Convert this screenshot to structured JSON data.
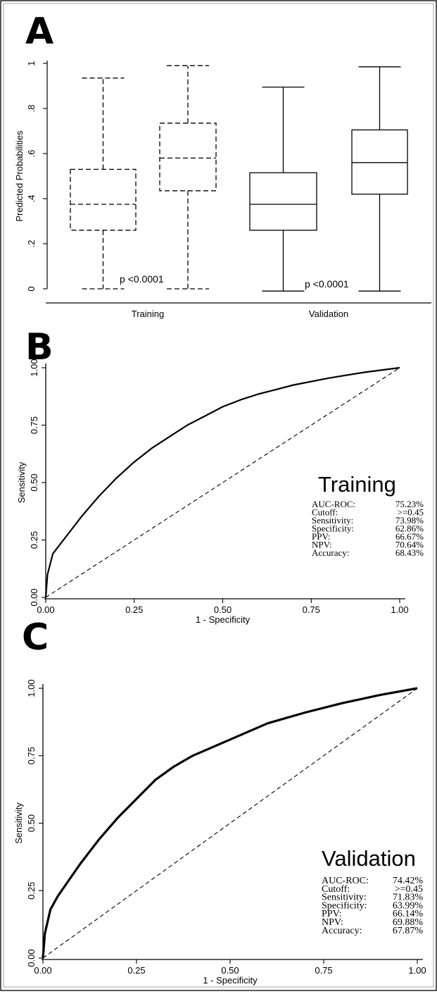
{
  "chart_data": [
    {
      "panel": "A",
      "type": "box",
      "ylabel": "Predicted Probabilities",
      "ylim": [
        0,
        1
      ],
      "yticks": [
        "0",
        ".2",
        ".4",
        ".6",
        ".8",
        "1"
      ],
      "groups": [
        {
          "label": "Training",
          "pvalue": "p <0.0001",
          "line_style": "dashed",
          "boxes": [
            {
              "min": 0.0,
              "q1": 0.26,
              "median": 0.375,
              "q3": 0.53,
              "max": 0.935
            },
            {
              "min": 0.0,
              "q1": 0.435,
              "median": 0.58,
              "q3": 0.735,
              "max": 0.99
            }
          ]
        },
        {
          "label": "Validation",
          "pvalue": "p <0.0001",
          "line_style": "solid",
          "boxes": [
            {
              "min": -0.01,
              "q1": 0.26,
              "median": 0.375,
              "q3": 0.515,
              "max": 0.895
            },
            {
              "min": -0.01,
              "q1": 0.42,
              "median": 0.56,
              "q3": 0.705,
              "max": 0.985
            }
          ]
        }
      ]
    },
    {
      "panel": "B",
      "type": "line",
      "title": "Training",
      "xlabel": "1 - Specificity",
      "ylabel": "Sensitivity",
      "xlim": [
        0,
        1
      ],
      "ylim": [
        0,
        1
      ],
      "xticks": [
        "0.00",
        "0.25",
        "0.50",
        "0.75",
        "1.00"
      ],
      "yticks": [
        "0.00",
        "0.25",
        "0.50",
        "0.75",
        "1.00"
      ],
      "series": [
        {
          "style": "solid",
          "x": [
            0,
            0.005,
            0.02,
            0.04,
            0.06,
            0.1,
            0.15,
            0.2,
            0.25,
            0.3,
            0.35,
            0.4,
            0.45,
            0.5,
            0.55,
            0.6,
            0.7,
            0.8,
            0.9,
            1.0
          ],
          "y": [
            0,
            0.1,
            0.19,
            0.23,
            0.27,
            0.35,
            0.44,
            0.52,
            0.59,
            0.65,
            0.7,
            0.75,
            0.79,
            0.83,
            0.86,
            0.885,
            0.925,
            0.955,
            0.98,
            1.0
          ]
        },
        {
          "style": "dashed",
          "x": [
            0,
            1
          ],
          "y": [
            0,
            1
          ]
        }
      ],
      "stats": [
        [
          "AUC-ROC:",
          "75.23%"
        ],
        [
          "Cutoff:",
          ">=0.45"
        ],
        [
          "Sensitivity:",
          "73.98%"
        ],
        [
          "Specificity:",
          "62.86%"
        ],
        [
          "PPV:",
          "66.67%"
        ],
        [
          "NPV:",
          "70.64%"
        ],
        [
          "Accuracy:",
          "68.43%"
        ]
      ]
    },
    {
      "panel": "C",
      "type": "line",
      "title": "Validation",
      "xlabel": "1 - Specificity",
      "ylabel": "Sensitivity",
      "xlim": [
        0,
        1
      ],
      "ylim": [
        0,
        1
      ],
      "xticks": [
        "0.00",
        "0.25",
        "0.50",
        "0.75",
        "1.00"
      ],
      "yticks": [
        "0.00",
        "0.25",
        "0.50",
        "0.75",
        "1.00"
      ],
      "series": [
        {
          "style": "solid",
          "x": [
            0,
            0.005,
            0.02,
            0.04,
            0.06,
            0.1,
            0.15,
            0.2,
            0.25,
            0.3,
            0.35,
            0.4,
            0.45,
            0.5,
            0.55,
            0.6,
            0.7,
            0.8,
            0.9,
            1.0
          ],
          "y": [
            0,
            0.09,
            0.18,
            0.23,
            0.27,
            0.35,
            0.44,
            0.52,
            0.59,
            0.66,
            0.71,
            0.75,
            0.78,
            0.81,
            0.84,
            0.87,
            0.91,
            0.945,
            0.975,
            1.0
          ]
        },
        {
          "style": "dashed",
          "x": [
            0,
            1
          ],
          "y": [
            0,
            1
          ]
        }
      ],
      "stats": [
        [
          "AUC-ROC:",
          "74.42%"
        ],
        [
          "Cutoff:",
          ">=0.45"
        ],
        [
          "Sensitivity:",
          "71.83%"
        ],
        [
          "Specificity:",
          "63.99%"
        ],
        [
          "PPV:",
          "66.14%"
        ],
        [
          "NPV:",
          "69.88%"
        ],
        [
          "Accuracy:",
          "67.87%"
        ]
      ]
    }
  ],
  "panel_labels": [
    "A",
    "B",
    "C"
  ]
}
